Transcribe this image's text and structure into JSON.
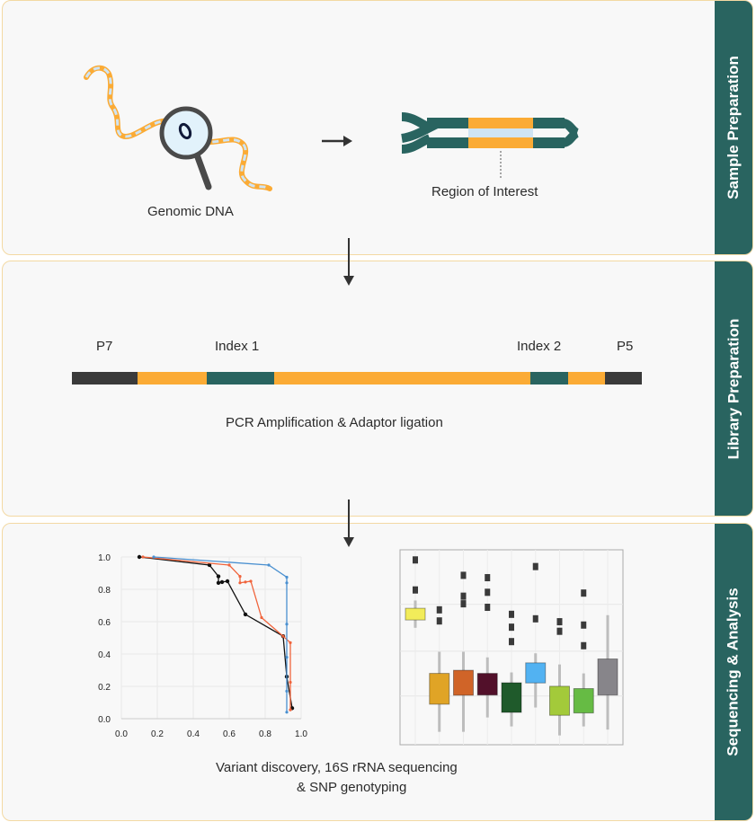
{
  "stages": [
    {
      "title": "Sample Preparation"
    },
    {
      "title": "Library Preparation"
    },
    {
      "title": "Sequencing & Analysis"
    }
  ],
  "sample_prep": {
    "genomic_dna_label": "Genomic DNA",
    "region_label": "Region of Interest"
  },
  "library_prep": {
    "segment_labels": [
      "P7",
      "Index 1",
      "Index 2",
      "P5"
    ],
    "caption": "PCR Amplification & Adaptor ligation"
  },
  "analysis": {
    "caption_line1": "Variant discovery, 16S rRNA sequencing",
    "caption_line2": "& SNP genotyping"
  },
  "colors": {
    "teal": "#296460",
    "orange": "#fbab35",
    "dark": "#3a3a3a",
    "light_blue": "#cfe4f3",
    "panel_border": "#f3d9a3"
  },
  "chart_data": [
    {
      "type": "line",
      "xlim": [
        0.0,
        1.0
      ],
      "ylim": [
        0.0,
        1.0
      ],
      "x_ticks": [
        "0.0",
        "0.2",
        "0.4",
        "0.6",
        "0.8",
        "1.0"
      ],
      "y_ticks": [
        "0.0",
        "0.2",
        "0.4",
        "0.6",
        "0.8",
        "1.0"
      ],
      "grid": true,
      "series": [
        {
          "color": "#111111",
          "points": [
            [
              0.1,
              1.0
            ],
            [
              0.49,
              0.95
            ],
            [
              0.54,
              0.88
            ],
            [
              0.54,
              0.84
            ],
            [
              0.56,
              0.845
            ],
            [
              0.59,
              0.85
            ],
            [
              0.69,
              0.645
            ],
            [
              0.9,
              0.51
            ],
            [
              0.92,
              0.26
            ],
            [
              0.95,
              0.065
            ]
          ]
        },
        {
          "color": "#f0643c",
          "points": [
            [
              0.12,
              1.0
            ],
            [
              0.6,
              0.95
            ],
            [
              0.66,
              0.88
            ],
            [
              0.66,
              0.84
            ],
            [
              0.69,
              0.845
            ],
            [
              0.72,
              0.85
            ],
            [
              0.78,
              0.625
            ],
            [
              0.9,
              0.51
            ],
            [
              0.94,
              0.47
            ],
            [
              0.94,
              0.225
            ],
            [
              0.94,
              0.055
            ]
          ]
        },
        {
          "color": "#4a90d0",
          "points": [
            [
              0.18,
              1.0
            ],
            [
              0.82,
              0.95
            ],
            [
              0.92,
              0.875
            ],
            [
              0.92,
              0.84
            ],
            [
              0.92,
              0.585
            ],
            [
              0.92,
              0.38
            ],
            [
              0.92,
              0.17
            ],
            [
              0.92,
              0.04
            ]
          ]
        }
      ]
    },
    {
      "type": "box",
      "ylim": [
        0,
        1
      ],
      "grid": true,
      "boxes": [
        {
          "color": "#f2ec5a",
          "q1": 0.64,
          "q3": 0.7,
          "whisker_low": 0.6,
          "whisker_high": 0.74,
          "outliers": [
            0.948,
            0.794
          ]
        },
        {
          "color": "#e0a426",
          "q1": 0.208,
          "q3": 0.366,
          "whisker_low": 0.066,
          "whisker_high": 0.477,
          "outliers": [
            0.692,
            0.635
          ]
        },
        {
          "color": "#d06428",
          "q1": 0.254,
          "q3": 0.382,
          "whisker_low": 0.066,
          "whisker_high": 0.477,
          "outliers": [
            0.869,
            0.762,
            0.723
          ]
        },
        {
          "color": "#52102a",
          "q1": 0.255,
          "q3": 0.366,
          "whisker_low": 0.14,
          "whisker_high": 0.448,
          "outliers": [
            0.857,
            0.782,
            0.705
          ]
        },
        {
          "color": "#1f5a2b",
          "q1": 0.166,
          "q3": 0.318,
          "whisker_low": 0.094,
          "whisker_high": 0.371,
          "outliers": [
            0.669,
            0.603,
            0.529
          ]
        },
        {
          "color": "#52b2f2",
          "q1": 0.317,
          "q3": 0.42,
          "whisker_low": 0.191,
          "whisker_high": 0.469,
          "outliers": [
            0.914,
            0.646
          ]
        },
        {
          "color": "#a3ca3a",
          "q1": 0.151,
          "q3": 0.3,
          "whisker_low": 0.048,
          "whisker_high": 0.412,
          "outliers": [
            0.631,
            0.582
          ]
        },
        {
          "color": "#66bb44",
          "q1": 0.163,
          "q3": 0.288,
          "whisker_low": 0.094,
          "whisker_high": 0.366,
          "outliers": [
            0.778,
            0.614,
            0.508
          ]
        },
        {
          "color": "#87858a",
          "q1": 0.255,
          "q3": 0.44,
          "whisker_low": 0.078,
          "whisker_high": 0.665,
          "outliers": []
        }
      ]
    }
  ]
}
